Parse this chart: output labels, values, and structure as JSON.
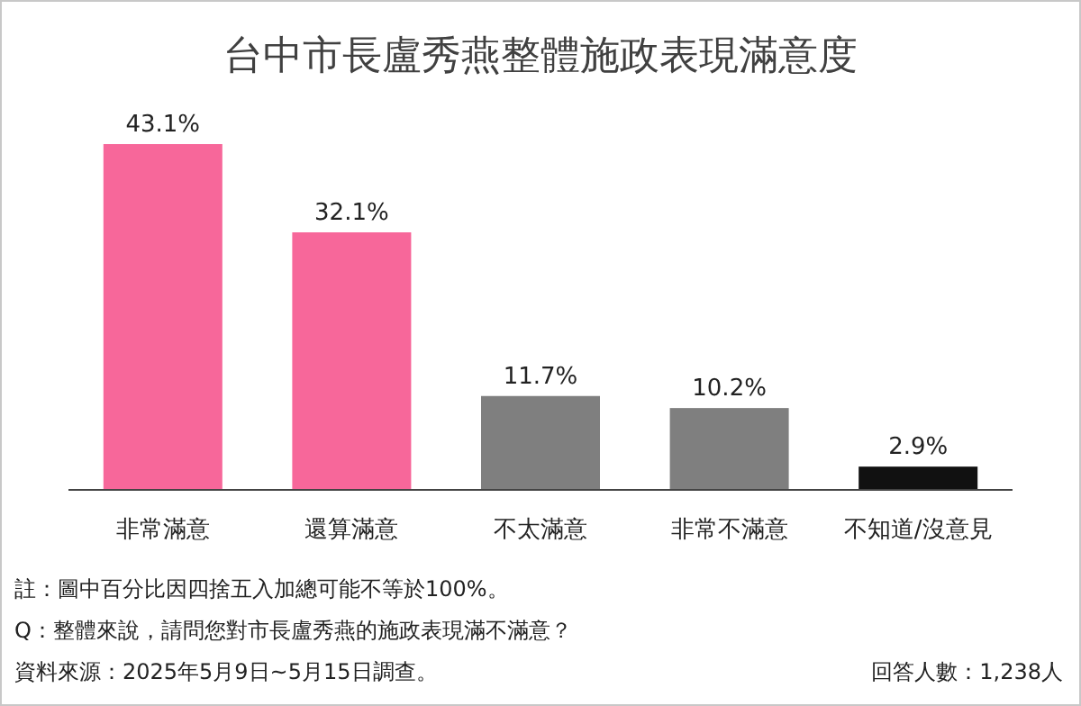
{
  "chart_data": {
    "type": "bar",
    "title": "台中市長盧秀燕整體施政表現滿意度",
    "categories": [
      "非常滿意",
      "還算滿意",
      "不太滿意",
      "非常不滿意",
      "不知道/沒意見"
    ],
    "values": [
      43.1,
      32.1,
      11.7,
      10.2,
      2.9
    ],
    "colors": [
      "#f7679a",
      "#f7679a",
      "#7f7f7f",
      "#7f7f7f",
      "#111111"
    ],
    "value_labels": [
      "43.1%",
      "32.1%",
      "11.7%",
      "10.2%",
      "2.9%"
    ],
    "annotations": [
      "註：圖中百分比因四捨五入加總可能不等於100%。",
      "Q：整體來說，請問您對市長盧秀燕的施政表現滿不滿意？",
      "資料來源：2025年5月9日~5月15日調查。",
      "回答人數：1,238人"
    ]
  }
}
